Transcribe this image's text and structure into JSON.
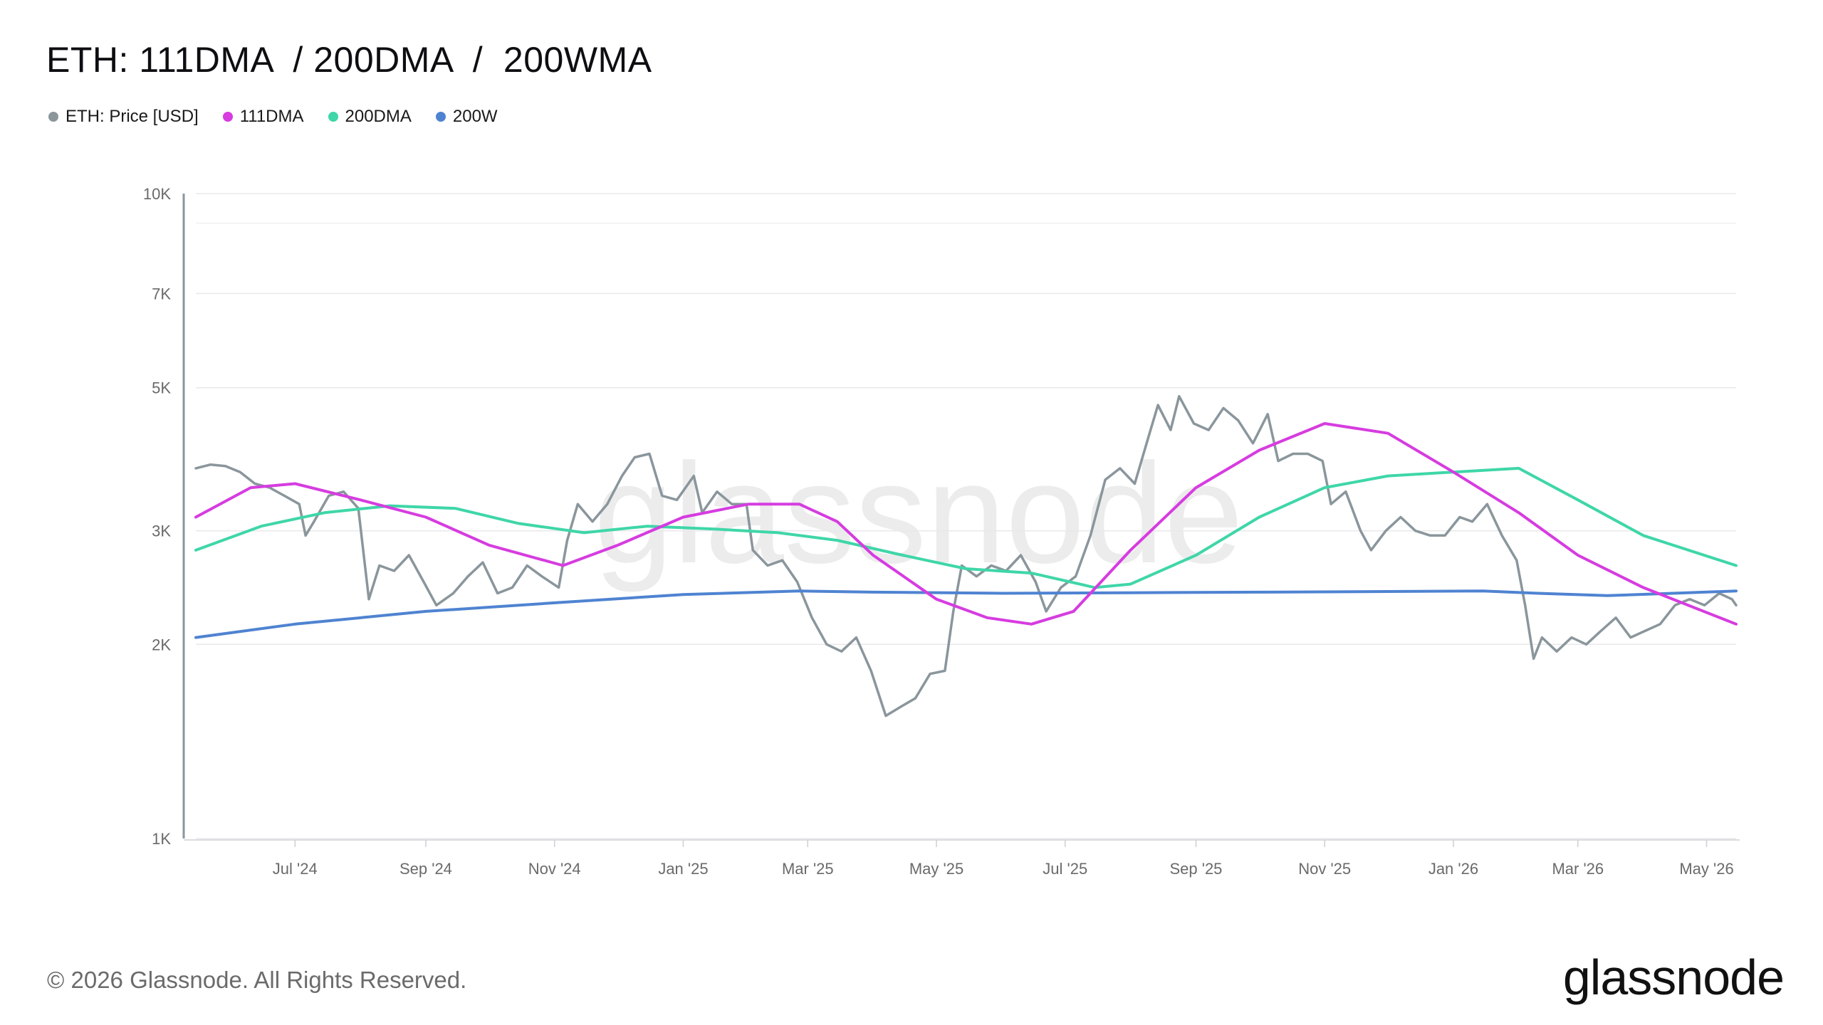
{
  "header": {
    "title": "ETH: 111DMA  / 200DMA  /  200WMA"
  },
  "legend": [
    {
      "label": "ETH: Price [USD]",
      "color": "#8a969c"
    },
    {
      "label": "111DMA",
      "color": "#d63ce0"
    },
    {
      "label": "200DMA",
      "color": "#3fd6a8"
    },
    {
      "label": "200W",
      "color": "#4f83d1"
    }
  ],
  "watermark": "glassnode",
  "footer": {
    "copyright": "© 2026 Glassnode. All Rights Reserved.",
    "brand": "glassnode"
  },
  "chart_data": {
    "type": "line",
    "title": "ETH: 111DMA  / 200DMA  /  200WMA",
    "y_scale": "log",
    "ylim": [
      1000,
      10000
    ],
    "y_ticks": [
      {
        "value": 1000,
        "label": "1K"
      },
      {
        "value": 2000,
        "label": "2K"
      },
      {
        "value": 3000,
        "label": "3K"
      },
      {
        "value": 5000,
        "label": "5K"
      },
      {
        "value": 7000,
        "label": "7K"
      },
      {
        "value": 10000,
        "label": "10K"
      }
    ],
    "xlim": [
      "2024-05-15",
      "2026-05-15"
    ],
    "x_ticks": [
      {
        "date": "2024-07-01",
        "label": "Jul '24"
      },
      {
        "date": "2024-09-01",
        "label": "Sep '24"
      },
      {
        "date": "2024-11-01",
        "label": "Nov '24"
      },
      {
        "date": "2025-01-01",
        "label": "Jan '25"
      },
      {
        "date": "2025-03-01",
        "label": "Mar '25"
      },
      {
        "date": "2025-05-01",
        "label": "May '25"
      },
      {
        "date": "2025-07-01",
        "label": "Jul '25"
      },
      {
        "date": "2025-09-01",
        "label": "Sep '25"
      },
      {
        "date": "2025-11-01",
        "label": "Nov '25"
      },
      {
        "date": "2026-01-01",
        "label": "Jan '26"
      },
      {
        "date": "2026-03-01",
        "label": "Mar '26"
      },
      {
        "date": "2026-05-01",
        "label": "May '26"
      }
    ],
    "grid": true,
    "legend_position": "top-left",
    "series": [
      {
        "name": "ETH: Price [USD]",
        "color": "#8a969c",
        "points": [
          [
            "2024-05-15",
            3750
          ],
          [
            "2024-05-22",
            3800
          ],
          [
            "2024-05-29",
            3780
          ],
          [
            "2024-06-05",
            3700
          ],
          [
            "2024-06-12",
            3550
          ],
          [
            "2024-06-19",
            3500
          ],
          [
            "2024-06-26",
            3400
          ],
          [
            "2024-07-03",
            3300
          ],
          [
            "2024-07-06",
            2950
          ],
          [
            "2024-07-10",
            3100
          ],
          [
            "2024-07-17",
            3400
          ],
          [
            "2024-07-24",
            3450
          ],
          [
            "2024-07-31",
            3250
          ],
          [
            "2024-08-05",
            2350
          ],
          [
            "2024-08-10",
            2650
          ],
          [
            "2024-08-17",
            2600
          ],
          [
            "2024-08-24",
            2750
          ],
          [
            "2024-08-31",
            2500
          ],
          [
            "2024-09-06",
            2300
          ],
          [
            "2024-09-14",
            2400
          ],
          [
            "2024-09-21",
            2550
          ],
          [
            "2024-09-28",
            2680
          ],
          [
            "2024-10-05",
            2400
          ],
          [
            "2024-10-12",
            2450
          ],
          [
            "2024-10-19",
            2650
          ],
          [
            "2024-10-26",
            2550
          ],
          [
            "2024-11-03",
            2450
          ],
          [
            "2024-11-07",
            2900
          ],
          [
            "2024-11-12",
            3300
          ],
          [
            "2024-11-19",
            3100
          ],
          [
            "2024-11-26",
            3300
          ],
          [
            "2024-12-03",
            3650
          ],
          [
            "2024-12-09",
            3900
          ],
          [
            "2024-12-16",
            3950
          ],
          [
            "2024-12-22",
            3400
          ],
          [
            "2024-12-29",
            3350
          ],
          [
            "2025-01-06",
            3650
          ],
          [
            "2025-01-10",
            3200
          ],
          [
            "2025-01-17",
            3450
          ],
          [
            "2025-01-24",
            3300
          ],
          [
            "2025-01-31",
            3300
          ],
          [
            "2025-02-03",
            2800
          ],
          [
            "2025-02-10",
            2650
          ],
          [
            "2025-02-17",
            2700
          ],
          [
            "2025-02-24",
            2500
          ],
          [
            "2025-03-03",
            2200
          ],
          [
            "2025-03-10",
            2000
          ],
          [
            "2025-03-17",
            1950
          ],
          [
            "2025-03-24",
            2050
          ],
          [
            "2025-03-31",
            1820
          ],
          [
            "2025-04-07",
            1550
          ],
          [
            "2025-04-14",
            1600
          ],
          [
            "2025-04-21",
            1650
          ],
          [
            "2025-04-28",
            1800
          ],
          [
            "2025-05-05",
            1820
          ],
          [
            "2025-05-09",
            2250
          ],
          [
            "2025-05-13",
            2650
          ],
          [
            "2025-05-20",
            2550
          ],
          [
            "2025-05-27",
            2650
          ],
          [
            "2025-06-03",
            2600
          ],
          [
            "2025-06-10",
            2750
          ],
          [
            "2025-06-17",
            2500
          ],
          [
            "2025-06-22",
            2250
          ],
          [
            "2025-06-29",
            2450
          ],
          [
            "2025-07-06",
            2550
          ],
          [
            "2025-07-13",
            2950
          ],
          [
            "2025-07-20",
            3600
          ],
          [
            "2025-07-27",
            3750
          ],
          [
            "2025-08-03",
            3550
          ],
          [
            "2025-08-10",
            4250
          ],
          [
            "2025-08-14",
            4700
          ],
          [
            "2025-08-20",
            4300
          ],
          [
            "2025-08-24",
            4850
          ],
          [
            "2025-08-31",
            4400
          ],
          [
            "2025-09-07",
            4300
          ],
          [
            "2025-09-14",
            4650
          ],
          [
            "2025-09-21",
            4450
          ],
          [
            "2025-09-28",
            4100
          ],
          [
            "2025-10-05",
            4550
          ],
          [
            "2025-10-10",
            3850
          ],
          [
            "2025-10-17",
            3950
          ],
          [
            "2025-10-24",
            3950
          ],
          [
            "2025-10-31",
            3850
          ],
          [
            "2025-11-04",
            3300
          ],
          [
            "2025-11-11",
            3450
          ],
          [
            "2025-11-18",
            3000
          ],
          [
            "2025-11-23",
            2800
          ],
          [
            "2025-11-30",
            3000
          ],
          [
            "2025-12-07",
            3150
          ],
          [
            "2025-12-14",
            3000
          ],
          [
            "2025-12-21",
            2950
          ],
          [
            "2025-12-28",
            2950
          ],
          [
            "2026-01-04",
            3150
          ],
          [
            "2026-01-10",
            3100
          ],
          [
            "2026-01-17",
            3300
          ],
          [
            "2026-01-24",
            2950
          ],
          [
            "2026-01-31",
            2700
          ],
          [
            "2026-02-04",
            2300
          ],
          [
            "2026-02-08",
            1900
          ],
          [
            "2026-02-12",
            2050
          ],
          [
            "2026-02-19",
            1950
          ],
          [
            "2026-02-26",
            2050
          ],
          [
            "2026-03-05",
            2000
          ],
          [
            "2026-03-12",
            2100
          ],
          [
            "2026-03-19",
            2200
          ],
          [
            "2026-03-26",
            2050
          ],
          [
            "2026-04-02",
            2100
          ],
          [
            "2026-04-09",
            2150
          ],
          [
            "2026-04-16",
            2300
          ],
          [
            "2026-04-23",
            2350
          ],
          [
            "2026-04-30",
            2300
          ],
          [
            "2026-05-07",
            2400
          ],
          [
            "2026-05-13",
            2350
          ],
          [
            "2026-05-15",
            2300
          ]
        ]
      },
      {
        "name": "111DMA",
        "color": "#d63ce0",
        "points": [
          [
            "2024-05-15",
            3150
          ],
          [
            "2024-06-10",
            3500
          ],
          [
            "2024-07-01",
            3550
          ],
          [
            "2024-08-01",
            3350
          ],
          [
            "2024-09-01",
            3150
          ],
          [
            "2024-10-01",
            2850
          ],
          [
            "2024-11-05",
            2650
          ],
          [
            "2024-12-01",
            2850
          ],
          [
            "2025-01-01",
            3150
          ],
          [
            "2025-02-01",
            3300
          ],
          [
            "2025-02-25",
            3300
          ],
          [
            "2025-03-15",
            3100
          ],
          [
            "2025-04-01",
            2750
          ],
          [
            "2025-05-01",
            2350
          ],
          [
            "2025-05-25",
            2200
          ],
          [
            "2025-06-15",
            2150
          ],
          [
            "2025-07-05",
            2250
          ],
          [
            "2025-08-01",
            2800
          ],
          [
            "2025-09-01",
            3500
          ],
          [
            "2025-10-01",
            4000
          ],
          [
            "2025-11-01",
            4400
          ],
          [
            "2025-12-01",
            4250
          ],
          [
            "2026-01-01",
            3700
          ],
          [
            "2026-02-01",
            3200
          ],
          [
            "2026-03-01",
            2750
          ],
          [
            "2026-04-01",
            2450
          ],
          [
            "2026-05-15",
            2150
          ]
        ]
      },
      {
        "name": "200DMA",
        "color": "#3fd6a8",
        "points": [
          [
            "2024-05-15",
            2800
          ],
          [
            "2024-06-15",
            3050
          ],
          [
            "2024-07-15",
            3200
          ],
          [
            "2024-08-15",
            3280
          ],
          [
            "2024-09-15",
            3250
          ],
          [
            "2024-10-15",
            3080
          ],
          [
            "2024-11-15",
            2980
          ],
          [
            "2024-12-15",
            3050
          ],
          [
            "2025-01-15",
            3020
          ],
          [
            "2025-02-15",
            2980
          ],
          [
            "2025-03-15",
            2900
          ],
          [
            "2025-04-15",
            2750
          ],
          [
            "2025-05-15",
            2620
          ],
          [
            "2025-06-15",
            2580
          ],
          [
            "2025-07-15",
            2450
          ],
          [
            "2025-08-01",
            2480
          ],
          [
            "2025-09-01",
            2750
          ],
          [
            "2025-10-01",
            3150
          ],
          [
            "2025-11-01",
            3500
          ],
          [
            "2025-12-01",
            3650
          ],
          [
            "2026-01-01",
            3700
          ],
          [
            "2026-02-01",
            3750
          ],
          [
            "2026-03-01",
            3350
          ],
          [
            "2026-04-01",
            2950
          ],
          [
            "2026-05-15",
            2650
          ]
        ]
      },
      {
        "name": "200W",
        "color": "#4f83d1",
        "points": [
          [
            "2024-05-15",
            2050
          ],
          [
            "2024-07-01",
            2150
          ],
          [
            "2024-09-01",
            2250
          ],
          [
            "2024-11-01",
            2320
          ],
          [
            "2025-01-01",
            2390
          ],
          [
            "2025-02-25",
            2420
          ],
          [
            "2025-04-01",
            2410
          ],
          [
            "2025-06-01",
            2400
          ],
          [
            "2025-08-01",
            2405
          ],
          [
            "2025-10-01",
            2410
          ],
          [
            "2026-01-15",
            2420
          ],
          [
            "2026-02-10",
            2400
          ],
          [
            "2026-03-15",
            2380
          ],
          [
            "2026-04-15",
            2400
          ],
          [
            "2026-05-15",
            2420
          ]
        ]
      }
    ]
  }
}
